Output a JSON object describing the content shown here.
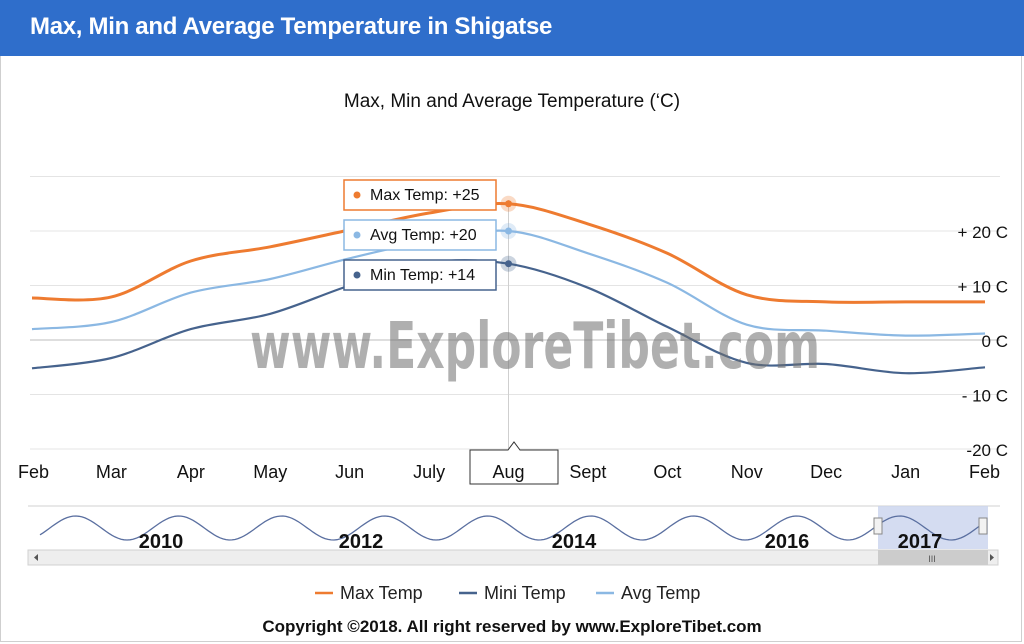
{
  "header": {
    "title": "Max, Min and Average Temperature in Shigatse"
  },
  "chart_data": {
    "type": "line",
    "title": "Max, Min and Average Temperature (‘C)",
    "categories": [
      "Feb",
      "Mar",
      "Apr",
      "May",
      "Jun",
      "July",
      "Aug",
      "Sept",
      "Oct",
      "Nov",
      "Dec",
      "Jan",
      "Feb"
    ],
    "y_ticks": [
      {
        "value": 20,
        "label": "+ 20 C"
      },
      {
        "value": 10,
        "label": "+ 10 C"
      },
      {
        "value": 0,
        "label": "0 C"
      },
      {
        "value": -10,
        "label": "- 10 C"
      },
      {
        "value": -20,
        "label": "-20 C"
      }
    ],
    "ylim": [
      -20,
      30
    ],
    "grid": true,
    "series": [
      {
        "name": "Max Temp",
        "color": "#ee7b30",
        "values": [
          7.7,
          7.9,
          14.5,
          17.1,
          20.2,
          23.3,
          25,
          21.3,
          15.9,
          8.3,
          7,
          7,
          7
        ]
      },
      {
        "name": "Avg Temp",
        "color": "#8bb8e3",
        "values": [
          2.0,
          3.3,
          8.7,
          11.2,
          15,
          18.2,
          20,
          15.9,
          10.5,
          2.8,
          1.7,
          0.8,
          1.2
        ]
      },
      {
        "name": "Min Temp",
        "color": "#46638d",
        "values": [
          -5.2,
          -3.3,
          2,
          4.8,
          10,
          14.2,
          14,
          9.6,
          2.4,
          -4.2,
          -4.4,
          -6.1,
          -5
        ]
      }
    ],
    "legend_position": "bottom",
    "legend": [
      {
        "label": "Max Temp",
        "color": "#ee7b30"
      },
      {
        "label": "Mini Temp",
        "color": "#46638d"
      },
      {
        "label": "Avg Temp",
        "color": "#8bb8e3"
      }
    ],
    "tooltip": {
      "category": "Aug",
      "items": [
        {
          "label": "Max Temp: +25",
          "color": "#ee7b30",
          "value": 25
        },
        {
          "label": "Avg Temp: +20",
          "color": "#8bb8e3",
          "value": 20
        },
        {
          "label": "Min Temp: +14",
          "color": "#46638d",
          "value": 14
        }
      ]
    },
    "navigator": {
      "years": [
        "2010",
        "2012",
        "2014",
        "2016",
        "2017"
      ],
      "selected_year": "2017",
      "scroll_grip": "III"
    },
    "watermark": "www.ExploreTibet.com"
  },
  "footer": {
    "copyright": "Copyright ©2018.  All right reserved by www.ExploreTibet.com"
  }
}
